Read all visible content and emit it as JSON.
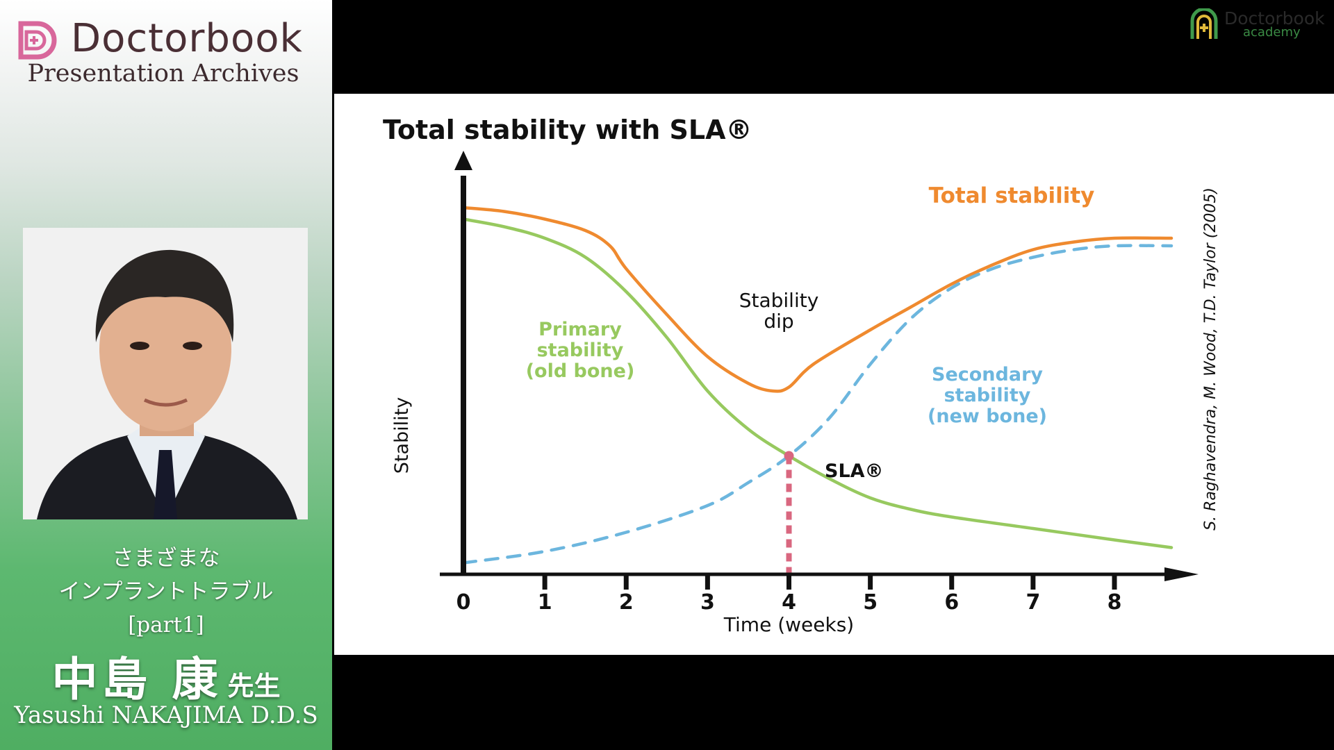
{
  "sidebar": {
    "brand_name": "Doctorbook",
    "brand_subtitle": "Presentation Archives",
    "lecture_lines": [
      "さまざまな",
      "インプラントトラブル",
      "[part1]"
    ],
    "speaker_name_jp": "中島 康",
    "speaker_honorific": "先生",
    "speaker_name_en": "Yasushi NAKAJIMA D.D.S"
  },
  "academy_logo": {
    "name": "Doctorbook",
    "sub": "academy"
  },
  "chart_data": {
    "type": "line",
    "title": "Total stability with SLA®",
    "xlabel": "Time (weeks)",
    "ylabel": "Stability",
    "x_ticks": [
      0,
      1,
      2,
      3,
      4,
      5,
      6,
      7,
      8
    ],
    "xlim": [
      0,
      8.7
    ],
    "ylim": [
      0,
      100
    ],
    "series": [
      {
        "name": "Total stability",
        "color": "#ef8a2f",
        "style": "solid",
        "x": [
          0,
          0.5,
          1,
          1.5,
          1.8,
          2,
          2.5,
          3,
          3.5,
          3.8,
          4,
          4.3,
          5,
          5.5,
          6,
          6.5,
          7,
          7.5,
          8,
          8.7
        ],
        "y": [
          96,
          95,
          93,
          90,
          86,
          80,
          68,
          57,
          50,
          48,
          49,
          55,
          64,
          70,
          76,
          81,
          85,
          87,
          88,
          88
        ]
      },
      {
        "name": "Primary stability (old bone)",
        "color": "#97c95f",
        "style": "solid",
        "x": [
          0,
          0.5,
          1,
          1.5,
          2,
          2.5,
          3,
          3.5,
          4,
          4.5,
          5,
          5.5,
          6,
          7,
          8,
          8.7
        ],
        "y": [
          93,
          91,
          88,
          83,
          74,
          62,
          48,
          38,
          31,
          25,
          20,
          17,
          15,
          12,
          9,
          7
        ]
      },
      {
        "name": "Secondary stability (new bone)",
        "color": "#6cb6de",
        "style": "dashed",
        "x": [
          0,
          1,
          2,
          3,
          3.5,
          4,
          4.5,
          5,
          5.5,
          6,
          6.5,
          7,
          7.5,
          8,
          8.7
        ],
        "y": [
          3,
          6,
          11,
          18,
          24,
          31,
          41,
          55,
          67,
          75,
          80,
          83,
          85,
          86,
          86
        ]
      }
    ],
    "annotations": {
      "stability_dip": "Stability dip",
      "sla_marker_label": "SLA®",
      "sla_marker_x": 4,
      "sla_marker_y": 31,
      "sla_marker_color": "#d9677f",
      "citation": "S. Raghavendra, M. Wood, T.D. Taylor (2005)"
    }
  }
}
